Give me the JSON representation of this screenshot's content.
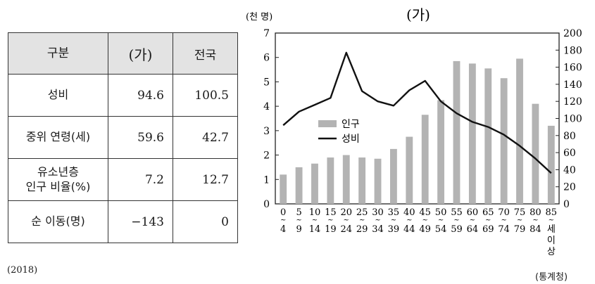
{
  "table": {
    "headers": [
      "구분",
      "(가)",
      "전국"
    ],
    "rows": [
      {
        "label": "성비",
        "a": "94.6",
        "national": "100.5"
      },
      {
        "label": "중위 연령(세)",
        "a": "59.6",
        "national": "42.7"
      },
      {
        "label_line1": "유소년층",
        "label_line2": "인구 비율(%)",
        "a": "7.2",
        "national": "12.7"
      },
      {
        "label": "순 이동(명)",
        "a": "−143",
        "national": "0"
      }
    ]
  },
  "year_note": "(2018)",
  "source_note": "(통계청)",
  "chart_data": {
    "type": "bar",
    "title": "(가)",
    "ylabel_left": "(천 명)",
    "ylim_left": [
      0,
      7
    ],
    "yticks_left": [
      0,
      1,
      2,
      3,
      4,
      5,
      6,
      7
    ],
    "ylim_right": [
      0,
      200
    ],
    "yticks_right": [
      0,
      20,
      40,
      60,
      80,
      100,
      120,
      140,
      160,
      180,
      200
    ],
    "categories": [
      {
        "top": "0",
        "bottom": "4"
      },
      {
        "top": "5",
        "bottom": "9"
      },
      {
        "top": "10",
        "bottom": "14"
      },
      {
        "top": "15",
        "bottom": "19"
      },
      {
        "top": "20",
        "bottom": "24"
      },
      {
        "top": "25",
        "bottom": "29"
      },
      {
        "top": "30",
        "bottom": "34"
      },
      {
        "top": "35",
        "bottom": "39"
      },
      {
        "top": "40",
        "bottom": "44"
      },
      {
        "top": "45",
        "bottom": "49"
      },
      {
        "top": "50",
        "bottom": "54"
      },
      {
        "top": "55",
        "bottom": "59"
      },
      {
        "top": "60",
        "bottom": "64"
      },
      {
        "top": "65",
        "bottom": "69"
      },
      {
        "top": "70",
        "bottom": "74"
      },
      {
        "top": "75",
        "bottom": "79"
      },
      {
        "top": "80",
        "bottom": "84"
      },
      {
        "top": "85",
        "bottom": "세 이상"
      }
    ],
    "series": [
      {
        "name": "인구",
        "type": "bar",
        "axis": "left",
        "color": "#b3b3b3",
        "values": [
          1.2,
          1.5,
          1.65,
          1.9,
          2.0,
          1.9,
          1.85,
          2.25,
          2.75,
          3.65,
          4.25,
          5.85,
          5.75,
          5.55,
          5.15,
          5.95,
          4.1,
          3.2
        ]
      },
      {
        "name": "성비",
        "type": "line",
        "axis": "right",
        "color": "#111111",
        "values": [
          92,
          108,
          116,
          124,
          177,
          132,
          120,
          115,
          133,
          144,
          120,
          106,
          96,
          90,
          81,
          68,
          53,
          36
        ]
      }
    ],
    "legend_position": "left-middle"
  }
}
